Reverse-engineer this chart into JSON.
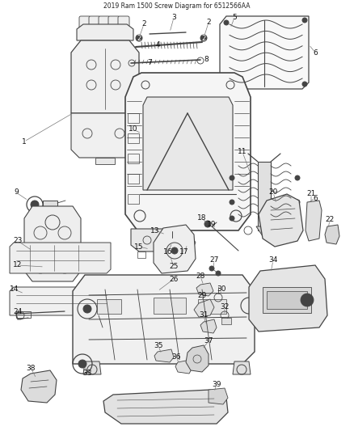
{
  "title": "2019 Ram 1500 Screw Diagram for 6512566AA",
  "bg_color": "#ffffff",
  "lc": "#444444",
  "figsize": [
    4.38,
    5.33
  ],
  "dpi": 100
}
